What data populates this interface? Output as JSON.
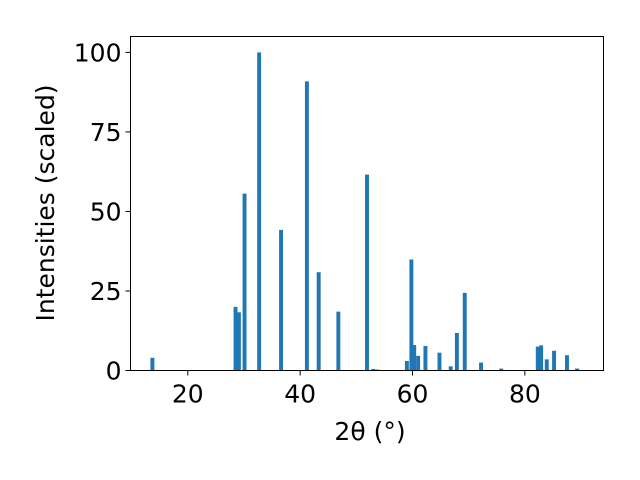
{
  "chart_data": {
    "type": "bar",
    "xlabel": "2θ (°)",
    "ylabel": "Intensities (scaled)",
    "xlim": [
      9.8,
      94.0
    ],
    "ylim": [
      0,
      105
    ],
    "xticks": [
      20,
      40,
      60,
      80
    ],
    "yticks": [
      0,
      25,
      50,
      75,
      100
    ],
    "color": "#1f77b4",
    "grid": false,
    "bar_width": 0.7,
    "points": [
      {
        "x": 13.7,
        "y": 4.0
      },
      {
        "x": 28.5,
        "y": 20.0
      },
      {
        "x": 29.1,
        "y": 18.3
      },
      {
        "x": 30.1,
        "y": 55.6
      },
      {
        "x": 32.7,
        "y": 100.0
      },
      {
        "x": 36.6,
        "y": 44.2
      },
      {
        "x": 41.2,
        "y": 90.9
      },
      {
        "x": 43.3,
        "y": 30.9
      },
      {
        "x": 46.8,
        "y": 18.5
      },
      {
        "x": 51.9,
        "y": 61.6
      },
      {
        "x": 53.0,
        "y": 0.5
      },
      {
        "x": 53.7,
        "y": 0.3
      },
      {
        "x": 59.0,
        "y": 3.0
      },
      {
        "x": 59.8,
        "y": 34.9
      },
      {
        "x": 60.3,
        "y": 8.0
      },
      {
        "x": 61.0,
        "y": 4.6
      },
      {
        "x": 62.3,
        "y": 7.7
      },
      {
        "x": 64.8,
        "y": 5.6
      },
      {
        "x": 66.8,
        "y": 1.3
      },
      {
        "x": 67.9,
        "y": 11.8
      },
      {
        "x": 69.3,
        "y": 24.4
      },
      {
        "x": 72.2,
        "y": 2.5
      },
      {
        "x": 75.8,
        "y": 0.6
      },
      {
        "x": 82.3,
        "y": 7.5
      },
      {
        "x": 82.9,
        "y": 7.9
      },
      {
        "x": 83.9,
        "y": 3.5
      },
      {
        "x": 85.2,
        "y": 6.2
      },
      {
        "x": 87.5,
        "y": 4.8
      },
      {
        "x": 89.3,
        "y": 0.6
      }
    ]
  }
}
